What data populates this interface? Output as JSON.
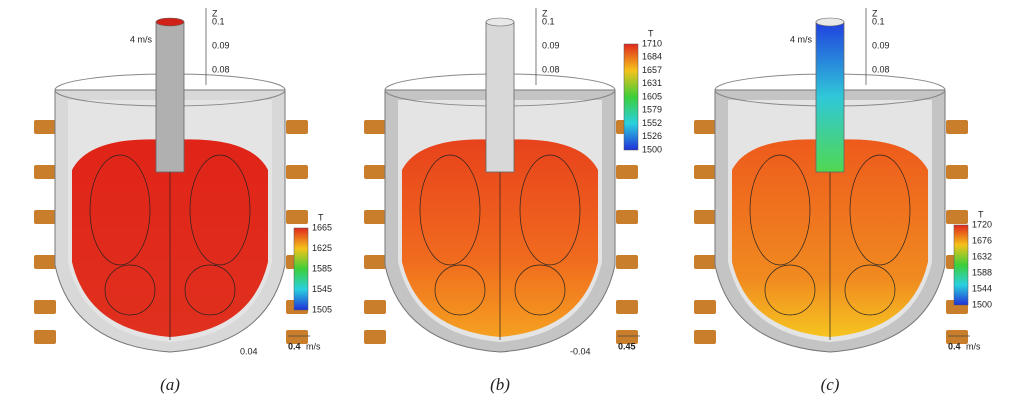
{
  "panels": [
    {
      "caption": "(a)",
      "nozzle_label": "4 m/s",
      "axis_label": "Z",
      "axis_ticks": [
        "0.1",
        "0.09",
        "0.08"
      ],
      "bottom_tick": "0.04",
      "legend_title": "T",
      "legend_labels": [
        "1665",
        "1625",
        "1585",
        "1545",
        "1505"
      ],
      "vector_scale": "0.4",
      "vector_unit": "m/s"
    },
    {
      "caption": "(b)",
      "axis_label": "Z",
      "axis_ticks": [
        "0.1",
        "0.09",
        "0.08"
      ],
      "bottom_tick": "-0.04",
      "legend_title": "T",
      "legend_labels": [
        "1710",
        "1684",
        "1657",
        "1631",
        "1605",
        "1579",
        "1552",
        "1526",
        "1500"
      ],
      "vector_scale": "0.45"
    },
    {
      "caption": "(c)",
      "nozzle_label": "4 m/s",
      "axis_label": "Z",
      "axis_ticks": [
        "0.1",
        "0.09",
        "0.08"
      ],
      "legend_title": "T",
      "legend_labels": [
        "1720",
        "1676",
        "1632",
        "1588",
        "1544",
        "1500"
      ],
      "vector_scale": "0.4",
      "vector_unit": "m/s"
    }
  ]
}
